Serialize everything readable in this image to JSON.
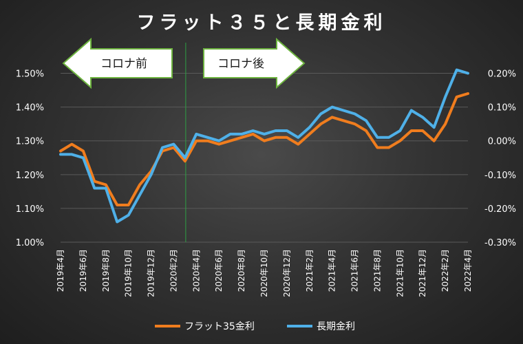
{
  "chart_data": {
    "type": "line",
    "title": "フラット３５と長期金利",
    "categories": [
      "2019年4月",
      "2019年5月",
      "2019年6月",
      "2019年7月",
      "2019年8月",
      "2019年9月",
      "2019年10月",
      "2019年11月",
      "2019年12月",
      "2020年1月",
      "2020年2月",
      "2020年3月",
      "2020年4月",
      "2020年5月",
      "2020年6月",
      "2020年7月",
      "2020年8月",
      "2020年9月",
      "2020年10月",
      "2020年11月",
      "2020年12月",
      "2021年1月",
      "2021年2月",
      "2021年3月",
      "2021年4月",
      "2021年5月",
      "2021年6月",
      "2021年7月",
      "2021年8月",
      "2021年9月",
      "2021年10月",
      "2021年11月",
      "2021年12月",
      "2022年1月",
      "2022年2月",
      "2022年3月",
      "2022年4月"
    ],
    "x_tick_labels": [
      "2019年4月",
      "2019年6月",
      "2019年8月",
      "2019年10月",
      "2019年12月",
      "2020年2月",
      "2020年4月",
      "2020年6月",
      "2020年8月",
      "2020年10月",
      "2020年12月",
      "2021年2月",
      "2021年4月",
      "2021年6月",
      "2021年8月",
      "2021年10月",
      "2021年12月",
      "2022年2月",
      "2022年4月"
    ],
    "y_left": {
      "ticks": [
        "1.00%",
        "1.10%",
        "1.20%",
        "1.30%",
        "1.40%",
        "1.50%"
      ],
      "range": [
        1.0,
        1.55
      ]
    },
    "y_right": {
      "ticks": [
        "-0.30%",
        "-0.20%",
        "-0.10%",
        "0.00%",
        "0.10%",
        "0.20%"
      ],
      "range": [
        -0.3,
        0.25
      ]
    },
    "series": [
      {
        "name": "フラット35金利",
        "axis": "left",
        "color": "#f07d1e",
        "values": [
          1.27,
          1.29,
          1.27,
          1.18,
          1.17,
          1.11,
          1.11,
          1.17,
          1.21,
          1.27,
          1.28,
          1.24,
          1.3,
          1.3,
          1.29,
          1.3,
          1.31,
          1.32,
          1.3,
          1.31,
          1.31,
          1.29,
          1.32,
          1.35,
          1.37,
          1.36,
          1.35,
          1.33,
          1.28,
          1.28,
          1.3,
          1.33,
          1.33,
          1.3,
          1.35,
          1.43,
          1.44
        ]
      },
      {
        "name": "長期金利",
        "axis": "right",
        "color": "#4fb0e8",
        "values": [
          -0.04,
          -0.04,
          -0.05,
          -0.14,
          -0.14,
          -0.24,
          -0.22,
          -0.16,
          -0.1,
          -0.02,
          -0.01,
          -0.05,
          0.02,
          0.01,
          0.0,
          0.02,
          0.02,
          0.03,
          0.02,
          0.03,
          0.03,
          0.01,
          0.04,
          0.08,
          0.1,
          0.09,
          0.08,
          0.06,
          0.01,
          0.01,
          0.03,
          0.09,
          0.07,
          0.04,
          0.13,
          0.21,
          0.2
        ]
      }
    ],
    "annotations": {
      "before": "コロナ前",
      "after": "コロナ後"
    },
    "divider_after_category": "2020年3月",
    "divider_color": "#2ea043"
  }
}
